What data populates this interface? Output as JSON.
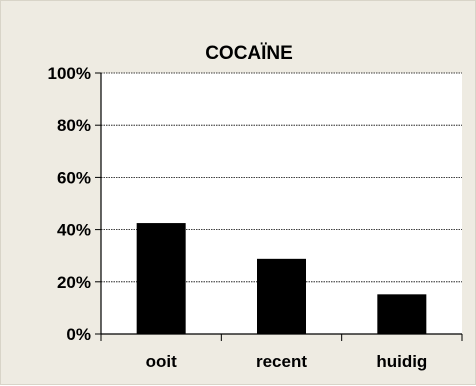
{
  "chart_data": {
    "type": "bar",
    "title": "COCAÏNE",
    "categories": [
      "ooit",
      "recent",
      "huidig"
    ],
    "values": [
      42.5,
      28.8,
      15.2
    ],
    "yticks": [
      "0%",
      "20%",
      "40%",
      "60%",
      "80%",
      "100%"
    ],
    "ylim": [
      0,
      100
    ],
    "xlabel": "",
    "ylabel": "",
    "grid": true,
    "colors": {
      "bar": "#000000",
      "plot_background": "#ffffff",
      "chart_background": "#eeebe2"
    }
  }
}
